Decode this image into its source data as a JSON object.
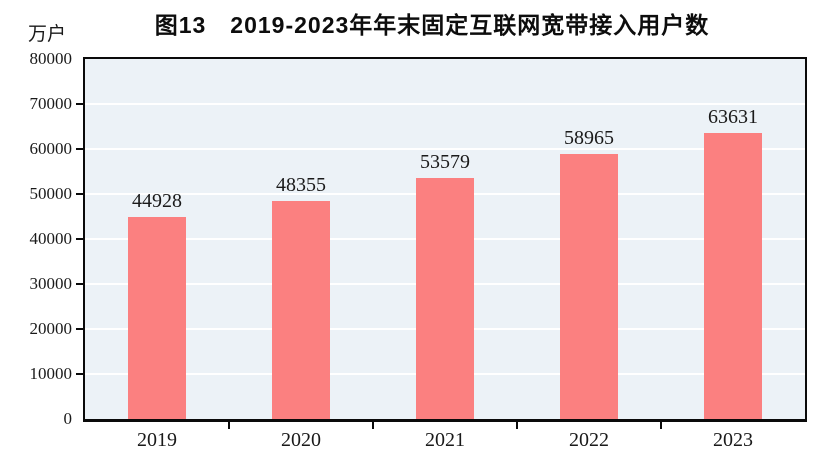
{
  "chart_data": {
    "type": "bar",
    "title": "图13　2019-2023年年末固定互联网宽带接入用户数",
    "unit_label": "万户",
    "categories": [
      "2019",
      "2020",
      "2021",
      "2022",
      "2023"
    ],
    "values": [
      44928,
      48355,
      53579,
      58965,
      63631
    ],
    "series_name": "年末固定互联网宽带接入用户数",
    "xlabel": "",
    "ylabel": "万户",
    "ylim": [
      0,
      80000
    ],
    "ytick_interval": 10000,
    "yticks": [
      0,
      10000,
      20000,
      30000,
      40000,
      50000,
      60000,
      70000,
      80000
    ],
    "grid": true,
    "legend_position": "none",
    "colors": {
      "bar_fill": "#fb8080",
      "plot_background": "#ecf2f7",
      "gridline": "#ffffff",
      "axis_frame": "#0a0a0a",
      "text": "#1a1a1a",
      "page_background": "#ffffff"
    }
  }
}
